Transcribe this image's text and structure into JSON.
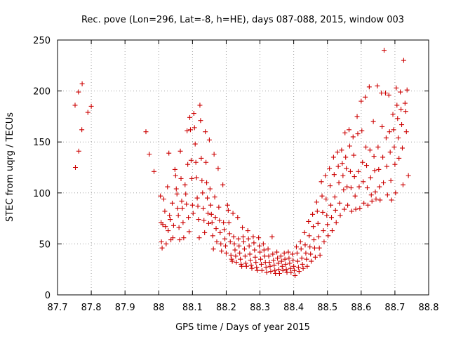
{
  "chart_data": {
    "type": "scatter",
    "title": "Rec. pove (Lon=296, Lat=-8, h=HE), days 087-088, 2015, window 003",
    "xlabel": "GPS time / Days of year 2015",
    "ylabel": "STEC from uqrg / TECUs",
    "xlim": [
      87.7,
      88.8
    ],
    "ylim": [
      0,
      250
    ],
    "xticks": [
      87.7,
      87.8,
      87.9,
      88.0,
      88.1,
      88.2,
      88.3,
      88.4,
      88.5,
      88.6,
      88.7,
      88.8
    ],
    "xtick_labels": [
      "87.7",
      "87.8",
      "87.9",
      "88",
      "88.1",
      "88.2",
      "88.3",
      "88.4",
      "88.5",
      "88.6",
      "88.7",
      "88.8"
    ],
    "yticks": [
      0,
      50,
      100,
      150,
      200,
      250
    ],
    "ytick_labels": [
      "0",
      "50",
      "100",
      "150",
      "200",
      "250"
    ],
    "grid": true,
    "marker": "+",
    "color": "#cc0000",
    "points": [
      [
        87.752,
        186
      ],
      [
        87.753,
        125
      ],
      [
        87.762,
        199
      ],
      [
        87.763,
        141
      ],
      [
        87.772,
        162
      ],
      [
        87.773,
        207
      ],
      [
        87.79,
        179
      ],
      [
        87.8,
        185
      ],
      [
        87.962,
        160
      ],
      [
        87.972,
        138
      ],
      [
        87.986,
        121
      ],
      [
        88.005,
        97
      ],
      [
        88.007,
        71
      ],
      [
        88.008,
        52
      ],
      [
        88.01,
        46
      ],
      [
        88.012,
        69
      ],
      [
        88.015,
        94
      ],
      [
        88.018,
        82
      ],
      [
        88.02,
        67
      ],
      [
        88.022,
        50
      ],
      [
        88.026,
        106
      ],
      [
        88.028,
        63
      ],
      [
        88.03,
        139
      ],
      [
        88.032,
        78
      ],
      [
        88.034,
        74
      ],
      [
        88.036,
        54
      ],
      [
        88.04,
        90
      ],
      [
        88.042,
        56
      ],
      [
        88.044,
        68
      ],
      [
        88.048,
        123
      ],
      [
        88.05,
        117
      ],
      [
        88.052,
        104
      ],
      [
        88.054,
        99
      ],
      [
        88.056,
        85
      ],
      [
        88.058,
        78
      ],
      [
        88.06,
        66
      ],
      [
        88.062,
        54
      ],
      [
        88.064,
        141
      ],
      [
        88.066,
        114
      ],
      [
        88.068,
        92
      ],
      [
        88.07,
        85
      ],
      [
        88.072,
        71
      ],
      [
        88.074,
        56
      ],
      [
        88.078,
        108
      ],
      [
        88.08,
        99
      ],
      [
        88.082,
        89
      ],
      [
        88.084,
        161
      ],
      [
        88.086,
        128
      ],
      [
        88.088,
        76
      ],
      [
        88.09,
        62
      ],
      [
        88.092,
        174
      ],
      [
        88.094,
        162
      ],
      [
        88.096,
        132
      ],
      [
        88.098,
        114
      ],
      [
        88.1,
        88
      ],
      [
        88.102,
        80
      ],
      [
        88.104,
        178
      ],
      [
        88.106,
        164
      ],
      [
        88.108,
        148
      ],
      [
        88.11,
        130
      ],
      [
        88.112,
        115
      ],
      [
        88.114,
        95
      ],
      [
        88.116,
        87
      ],
      [
        88.118,
        74
      ],
      [
        88.12,
        56
      ],
      [
        88.122,
        186
      ],
      [
        88.124,
        171
      ],
      [
        88.126,
        134
      ],
      [
        88.128,
        112
      ],
      [
        88.13,
        100
      ],
      [
        88.132,
        85
      ],
      [
        88.134,
        73
      ],
      [
        88.136,
        61
      ],
      [
        88.138,
        160
      ],
      [
        88.14,
        130
      ],
      [
        88.142,
        110
      ],
      [
        88.144,
        95
      ],
      [
        88.146,
        80
      ],
      [
        88.148,
        70
      ],
      [
        88.15,
        152
      ],
      [
        88.152,
        104
      ],
      [
        88.154,
        88
      ],
      [
        88.156,
        79
      ],
      [
        88.158,
        71
      ],
      [
        88.16,
        58
      ],
      [
        88.162,
        45
      ],
      [
        88.164,
        138
      ],
      [
        88.166,
        96
      ],
      [
        88.168,
        76
      ],
      [
        88.17,
        65
      ],
      [
        88.172,
        52
      ],
      [
        88.176,
        124
      ],
      [
        88.178,
        86
      ],
      [
        88.18,
        73
      ],
      [
        88.182,
        61
      ],
      [
        88.184,
        50
      ],
      [
        88.186,
        43
      ],
      [
        88.19,
        108
      ],
      [
        88.192,
        71
      ],
      [
        88.194,
        64
      ],
      [
        88.196,
        55
      ],
      [
        88.198,
        48
      ],
      [
        88.2,
        41
      ],
      [
        88.204,
        88
      ],
      [
        88.206,
        83
      ],
      [
        88.208,
        71
      ],
      [
        88.21,
        60
      ],
      [
        88.212,
        52
      ],
      [
        88.214,
        39
      ],
      [
        88.216,
        35
      ],
      [
        88.218,
        33
      ],
      [
        88.22,
        80
      ],
      [
        88.222,
        57
      ],
      [
        88.224,
        50
      ],
      [
        88.226,
        44
      ],
      [
        88.228,
        38
      ],
      [
        88.23,
        32
      ],
      [
        88.234,
        76
      ],
      [
        88.236,
        55
      ],
      [
        88.238,
        48
      ],
      [
        88.24,
        41
      ],
      [
        88.242,
        35
      ],
      [
        88.244,
        30
      ],
      [
        88.246,
        28
      ],
      [
        88.248,
        66
      ],
      [
        88.25,
        57
      ],
      [
        88.252,
        52
      ],
      [
        88.254,
        45
      ],
      [
        88.256,
        38
      ],
      [
        88.258,
        31
      ],
      [
        88.26,
        28
      ],
      [
        88.264,
        63
      ],
      [
        88.266,
        55
      ],
      [
        88.268,
        48
      ],
      [
        88.27,
        40
      ],
      [
        88.272,
        34
      ],
      [
        88.274,
        29
      ],
      [
        88.276,
        26
      ],
      [
        88.28,
        57
      ],
      [
        88.282,
        51
      ],
      [
        88.284,
        44
      ],
      [
        88.286,
        37
      ],
      [
        88.288,
        32
      ],
      [
        88.29,
        27
      ],
      [
        88.292,
        24
      ],
      [
        88.296,
        56
      ],
      [
        88.298,
        48
      ],
      [
        88.3,
        42
      ],
      [
        88.302,
        35
      ],
      [
        88.304,
        30
      ],
      [
        88.306,
        24
      ],
      [
        88.31,
        50
      ],
      [
        88.312,
        44
      ],
      [
        88.314,
        38
      ],
      [
        88.316,
        32
      ],
      [
        88.318,
        27
      ],
      [
        88.32,
        22
      ],
      [
        88.324,
        45
      ],
      [
        88.326,
        38
      ],
      [
        88.328,
        32
      ],
      [
        88.33,
        28
      ],
      [
        88.332,
        23
      ],
      [
        88.336,
        57
      ],
      [
        88.338,
        40
      ],
      [
        88.34,
        34
      ],
      [
        88.342,
        29
      ],
      [
        88.344,
        24
      ],
      [
        88.346,
        21
      ],
      [
        88.35,
        42
      ],
      [
        88.352,
        36
      ],
      [
        88.354,
        31
      ],
      [
        88.356,
        25
      ],
      [
        88.358,
        21
      ],
      [
        88.362,
        38
      ],
      [
        88.364,
        33
      ],
      [
        88.366,
        28
      ],
      [
        88.368,
        24
      ],
      [
        88.372,
        41
      ],
      [
        88.374,
        35
      ],
      [
        88.376,
        30
      ],
      [
        88.378,
        25
      ],
      [
        88.38,
        22
      ],
      [
        88.384,
        42
      ],
      [
        88.386,
        36
      ],
      [
        88.388,
        31
      ],
      [
        88.39,
        26
      ],
      [
        88.392,
        22
      ],
      [
        88.396,
        40
      ],
      [
        88.398,
        34
      ],
      [
        88.4,
        28
      ],
      [
        88.402,
        24
      ],
      [
        88.404,
        19
      ],
      [
        88.408,
        47
      ],
      [
        88.41,
        41
      ],
      [
        88.412,
        33
      ],
      [
        88.414,
        27
      ],
      [
        88.416,
        23
      ],
      [
        88.42,
        52
      ],
      [
        88.422,
        45
      ],
      [
        88.424,
        36
      ],
      [
        88.426,
        30
      ],
      [
        88.428,
        26
      ],
      [
        88.432,
        61
      ],
      [
        88.434,
        49
      ],
      [
        88.436,
        41
      ],
      [
        88.438,
        35
      ],
      [
        88.44,
        28
      ],
      [
        88.444,
        72
      ],
      [
        88.446,
        58
      ],
      [
        88.448,
        47
      ],
      [
        88.45,
        40
      ],
      [
        88.452,
        33
      ],
      [
        88.456,
        79
      ],
      [
        88.458,
        67
      ],
      [
        88.46,
        54
      ],
      [
        88.462,
        46
      ],
      [
        88.464,
        37
      ],
      [
        88.468,
        91
      ],
      [
        88.47,
        82
      ],
      [
        88.472,
        70
      ],
      [
        88.474,
        57
      ],
      [
        88.476,
        46
      ],
      [
        88.478,
        39
      ],
      [
        88.482,
        111
      ],
      [
        88.484,
        97
      ],
      [
        88.486,
        81
      ],
      [
        88.488,
        63
      ],
      [
        88.49,
        52
      ],
      [
        88.494,
        117
      ],
      [
        88.496,
        94
      ],
      [
        88.498,
        78
      ],
      [
        88.5,
        69
      ],
      [
        88.502,
        58
      ],
      [
        88.506,
        124
      ],
      [
        88.508,
        107
      ],
      [
        88.51,
        88
      ],
      [
        88.512,
        76
      ],
      [
        88.514,
        63
      ],
      [
        88.518,
        135
      ],
      [
        88.52,
        118
      ],
      [
        88.522,
        96
      ],
      [
        88.524,
        83
      ],
      [
        88.526,
        71
      ],
      [
        88.53,
        140
      ],
      [
        88.532,
        126
      ],
      [
        88.534,
        110
      ],
      [
        88.536,
        90
      ],
      [
        88.538,
        78
      ],
      [
        88.542,
        142
      ],
      [
        88.544,
        129
      ],
      [
        88.546,
        117
      ],
      [
        88.548,
        103
      ],
      [
        88.55,
        84
      ],
      [
        88.552,
        159
      ],
      [
        88.554,
        135
      ],
      [
        88.556,
        124
      ],
      [
        88.558,
        106
      ],
      [
        88.56,
        88
      ],
      [
        88.564,
        162
      ],
      [
        88.566,
        146
      ],
      [
        88.568,
        121
      ],
      [
        88.57,
        105
      ],
      [
        88.572,
        82
      ],
      [
        88.576,
        155
      ],
      [
        88.578,
        137
      ],
      [
        88.58,
        116
      ],
      [
        88.582,
        97
      ],
      [
        88.584,
        84
      ],
      [
        88.588,
        175
      ],
      [
        88.59,
        158
      ],
      [
        88.592,
        121
      ],
      [
        88.594,
        106
      ],
      [
        88.596,
        85
      ],
      [
        88.6,
        190
      ],
      [
        88.602,
        161
      ],
      [
        88.604,
        130
      ],
      [
        88.606,
        111
      ],
      [
        88.608,
        90
      ],
      [
        88.612,
        194
      ],
      [
        88.614,
        145
      ],
      [
        88.616,
        127
      ],
      [
        88.618,
        105
      ],
      [
        88.62,
        88
      ],
      [
        88.624,
        204
      ],
      [
        88.626,
        142
      ],
      [
        88.628,
        115
      ],
      [
        88.63,
        98
      ],
      [
        88.632,
        92
      ],
      [
        88.636,
        170
      ],
      [
        88.638,
        136
      ],
      [
        88.64,
        122
      ],
      [
        88.642,
        101
      ],
      [
        88.644,
        94
      ],
      [
        88.648,
        205
      ],
      [
        88.65,
        145
      ],
      [
        88.652,
        123
      ],
      [
        88.654,
        106
      ],
      [
        88.656,
        93
      ],
      [
        88.66,
        198
      ],
      [
        88.662,
        165
      ],
      [
        88.664,
        135
      ],
      [
        88.666,
        110
      ],
      [
        88.668,
        240
      ],
      [
        88.672,
        198
      ],
      [
        88.674,
        154
      ],
      [
        88.676,
        126
      ],
      [
        88.678,
        98
      ],
      [
        88.682,
        196
      ],
      [
        88.684,
        160
      ],
      [
        88.686,
        140
      ],
      [
        88.688,
        112
      ],
      [
        88.69,
        93
      ],
      [
        88.694,
        177
      ],
      [
        88.696,
        162
      ],
      [
        88.698,
        145
      ],
      [
        88.7,
        128
      ],
      [
        88.702,
        100
      ],
      [
        88.704,
        203
      ],
      [
        88.706,
        186
      ],
      [
        88.708,
        173
      ],
      [
        88.71,
        154
      ],
      [
        88.712,
        134
      ],
      [
        88.716,
        199
      ],
      [
        88.718,
        182
      ],
      [
        88.72,
        167
      ],
      [
        88.722,
        144
      ],
      [
        88.724,
        108
      ],
      [
        88.726,
        230
      ],
      [
        88.73,
        188
      ],
      [
        88.732,
        180
      ],
      [
        88.734,
        160
      ],
      [
        88.736,
        201
      ],
      [
        88.74,
        117
      ]
    ]
  }
}
